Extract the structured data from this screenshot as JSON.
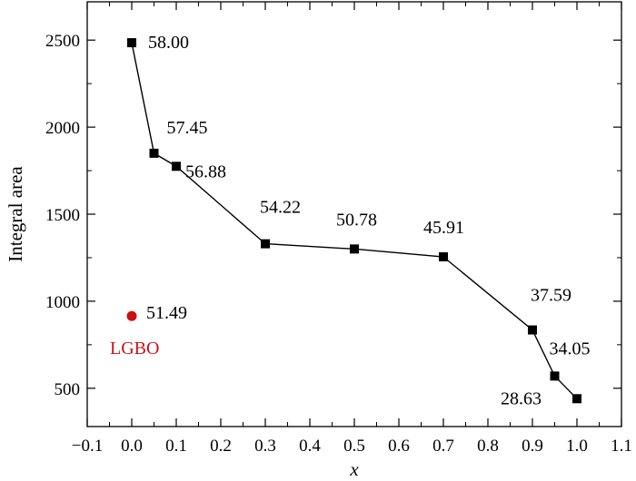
{
  "chart_data": {
    "type": "scatter",
    "xlabel": "x",
    "ylabel": "Integral area",
    "xlim": [
      -0.1,
      1.1
    ],
    "ylim": [
      280,
      2720
    ],
    "xticks": [
      "−0.1",
      "0.0",
      "0.1",
      "0.2",
      "0.3",
      "0.4",
      "0.5",
      "0.6",
      "0.7",
      "0.8",
      "0.9",
      "1.0",
      "1.1"
    ],
    "xtick_values": [
      -0.1,
      0.0,
      0.1,
      0.2,
      0.3,
      0.4,
      0.5,
      0.6,
      0.7,
      0.8,
      0.9,
      1.0,
      1.1
    ],
    "yticks": [
      "500",
      "1000",
      "1500",
      "2000",
      "2500"
    ],
    "ytick_values": [
      500,
      1000,
      1500,
      2000,
      2500
    ],
    "grid": false,
    "series": [
      {
        "marker": "square",
        "color": "#000000",
        "connected": true,
        "points": [
          {
            "x": 0.0,
            "y": 2485,
            "label": "58.00"
          },
          {
            "x": 0.05,
            "y": 1850,
            "label": "57.45"
          },
          {
            "x": 0.1,
            "y": 1775,
            "label": "56.88"
          },
          {
            "x": 0.3,
            "y": 1330,
            "label": "54.22"
          },
          {
            "x": 0.5,
            "y": 1300,
            "label": "50.78"
          },
          {
            "x": 0.7,
            "y": 1255,
            "label": "45.91"
          },
          {
            "x": 0.9,
            "y": 835,
            "label": "37.59"
          },
          {
            "x": 0.95,
            "y": 570,
            "label": "34.05"
          },
          {
            "x": 1.0,
            "y": 440,
            "label": "28.63"
          }
        ]
      },
      {
        "name": "LGBO",
        "marker": "circle",
        "color": "#cc1111",
        "connected": false,
        "points": [
          {
            "x": 0.0,
            "y": 915,
            "label": "51.49"
          }
        ]
      }
    ]
  }
}
